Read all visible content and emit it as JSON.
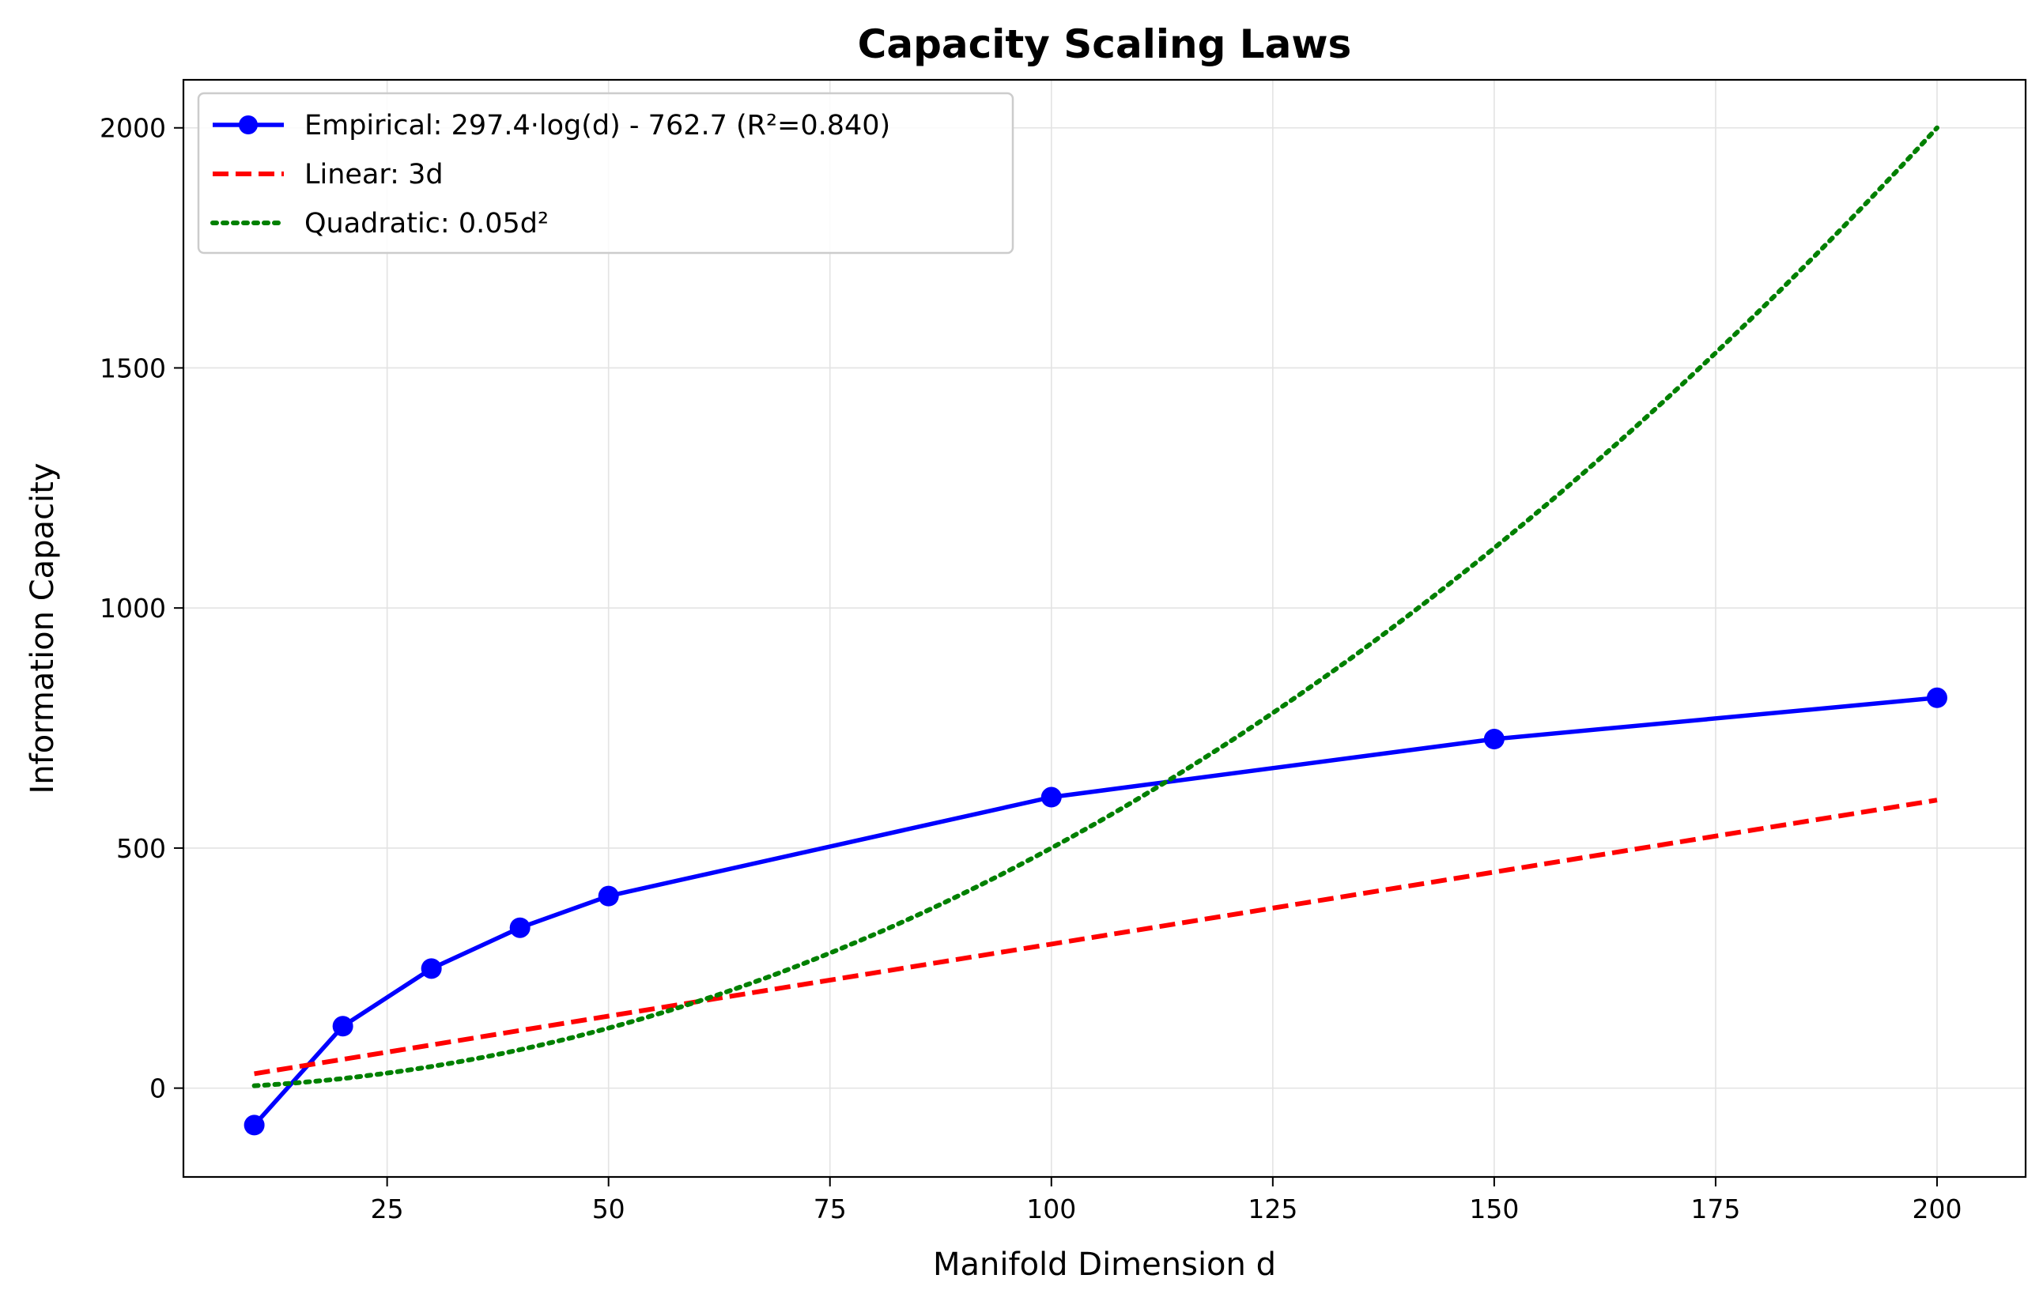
{
  "colors": {
    "empirical": "#0000ff",
    "linear": "#ff0000",
    "quadratic": "#008000",
    "grid": "#e3e3e3",
    "frame": "#000000"
  },
  "chart_data": {
    "type": "line",
    "title": "Capacity Scaling Laws",
    "xlabel": "Manifold Dimension d",
    "ylabel": "Information Capacity",
    "xlim": [
      2,
      210
    ],
    "ylim": [
      -185,
      2100
    ],
    "grid": true,
    "legend_position": "top-left",
    "x_ticks": [
      25,
      50,
      75,
      100,
      125,
      150,
      175,
      200
    ],
    "y_ticks": [
      0,
      500,
      1000,
      1500,
      2000
    ],
    "series": [
      {
        "name": "Empirical: 297.4·log(d) - 762.7 (R²=0.840)",
        "style": "solid",
        "markers": true,
        "color": "#0000ff",
        "x": [
          10,
          20,
          30,
          40,
          50,
          100,
          150,
          200
        ],
        "y": [
          -77,
          129,
          249,
          334,
          400,
          606,
          727,
          813
        ]
      },
      {
        "name": "Linear: 3d",
        "style": "dashed",
        "markers": false,
        "color": "#ff0000",
        "x": [
          10,
          20,
          30,
          40,
          50,
          100,
          150,
          200
        ],
        "y": [
          30,
          60,
          90,
          120,
          150,
          300,
          450,
          600
        ]
      },
      {
        "name": "Quadratic: 0.05d²",
        "style": "dotted",
        "markers": false,
        "color": "#008000",
        "x": [
          10,
          20,
          30,
          40,
          50,
          100,
          150,
          200
        ],
        "y": [
          5,
          20,
          45,
          80,
          125,
          500,
          1125,
          2000
        ]
      }
    ]
  }
}
